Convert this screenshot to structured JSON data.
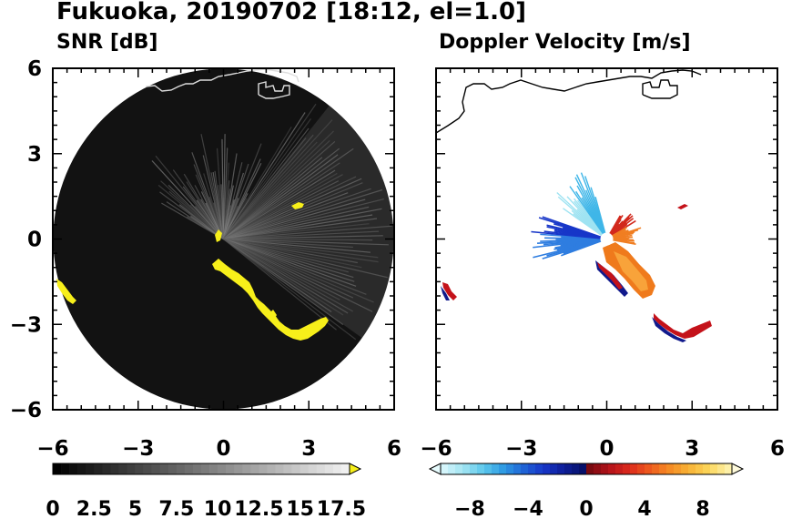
{
  "title": "Fukuoka, 20190702 [18:12, el=1.0]",
  "colors": {
    "snr_echo": "#f7ef1a",
    "snr_background": "#121212",
    "coastline_on_dark": "#dddddd",
    "coastline_on_light": "#000000"
  },
  "chart_data": [
    {
      "type": "heatmap",
      "panel": "left",
      "title": "SNR [dB]",
      "xlim": [
        -6,
        6
      ],
      "ylim": [
        -6,
        6
      ],
      "xticks": [
        -6,
        -3,
        0,
        3,
        6
      ],
      "yticks": [
        6,
        3,
        0,
        -3,
        -6
      ],
      "xtick_labels": [
        "−6",
        "−3",
        "0",
        "3",
        "6"
      ],
      "ytick_labels": [
        "6",
        "3",
        "0",
        "−3",
        "−6"
      ],
      "radar_range": 6,
      "colorbar": {
        "min": 0,
        "max": 18,
        "step": 0.5,
        "extend": "max",
        "labels": [
          "0",
          "2.5",
          "5",
          "7.5",
          "10",
          "12.5",
          "15",
          "17.5"
        ],
        "label_values": [
          0,
          2.5,
          5,
          7.5,
          10,
          12.5,
          15,
          17.5
        ],
        "colormap": "grayscale"
      }
    },
    {
      "type": "heatmap",
      "panel": "right",
      "title": "Doppler Velocity [m/s]",
      "xlim": [
        -6,
        6
      ],
      "ylim": [
        -6,
        6
      ],
      "xticks": [
        -6,
        -3,
        0,
        3,
        6
      ],
      "yticks": [
        6,
        3,
        0,
        -3,
        -6
      ],
      "xtick_labels": [
        "−6",
        "−3",
        "0",
        "3",
        "6"
      ],
      "colorbar": {
        "min": -10,
        "max": 10,
        "step": 0.5,
        "extend": "both",
        "labels": [
          "−8",
          "−4",
          "0",
          "4",
          "8"
        ],
        "label_values": [
          -8,
          -4,
          0,
          4,
          8
        ],
        "colormap": "diverging blue-red"
      }
    }
  ]
}
